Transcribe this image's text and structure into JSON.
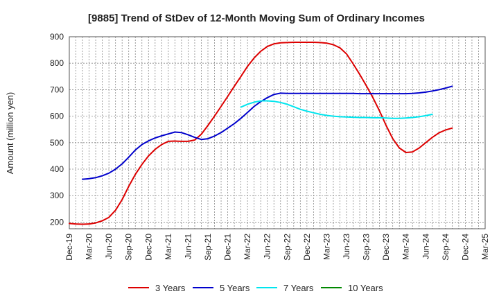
{
  "chart_data": {
    "type": "line",
    "title": "[9885]  Trend of StDev of 12-Month Moving Sum of Ordinary Incomes",
    "xlabel": "",
    "ylabel": "Amount (million yen)",
    "ylim": [
      175,
      900
    ],
    "yticks": [
      200,
      300,
      400,
      500,
      600,
      700,
      800,
      900
    ],
    "x_tick_labels": [
      "Dec-19",
      "Mar-20",
      "Jun-20",
      "Sep-20",
      "Dec-20",
      "Mar-21",
      "Jun-21",
      "Sep-21",
      "Dec-21",
      "Mar-22",
      "Jun-22",
      "Sep-22",
      "Dec-22",
      "Mar-23",
      "Jun-23",
      "Sep-23",
      "Dec-23",
      "Mar-24",
      "Jun-24",
      "Sep-24",
      "Dec-24",
      "Mar-25"
    ],
    "grid": true,
    "legend_position": "bottom",
    "series": [
      {
        "name": "3 Years",
        "color": "#dd0000",
        "start_index": 0,
        "values": [
          195,
          193,
          192,
          193,
          197,
          205,
          218,
          245,
          285,
          335,
          380,
          418,
          450,
          475,
          493,
          505,
          506,
          505,
          505,
          510,
          532,
          565,
          600,
          637,
          675,
          713,
          750,
          788,
          820,
          845,
          863,
          873,
          877,
          878,
          879,
          879,
          879,
          879,
          878,
          876,
          870,
          858,
          835,
          798,
          758,
          715,
          670,
          620,
          565,
          515,
          480,
          463,
          465,
          480,
          500,
          520,
          537,
          548,
          555
        ]
      },
      {
        "name": "5 Years",
        "color": "#0000cc",
        "start_index": 2,
        "values": [
          362,
          364,
          368,
          375,
          385,
          400,
          420,
          445,
          472,
          493,
          507,
          518,
          526,
          533,
          540,
          538,
          530,
          520,
          512,
          515,
          525,
          538,
          555,
          572,
          592,
          614,
          637,
          655,
          670,
          682,
          687,
          686,
          686,
          686,
          686,
          686,
          686,
          686,
          686,
          686,
          686,
          686,
          685,
          685,
          685,
          685,
          685,
          685,
          685,
          685,
          686,
          688,
          691,
          695,
          700,
          706,
          713
        ]
      },
      {
        "name": "7 Years",
        "color": "#00e5ee",
        "start_index": 26,
        "values": [
          634,
          645,
          653,
          658,
          658,
          656,
          652,
          645,
          636,
          626,
          619,
          613,
          607,
          603,
          600,
          598,
          597,
          596,
          595,
          595,
          594,
          594,
          593,
          592,
          592,
          593,
          595,
          598,
          602,
          607
        ]
      },
      {
        "name": "10 Years",
        "color": "#008800",
        "start_index": 0,
        "values": []
      }
    ]
  }
}
